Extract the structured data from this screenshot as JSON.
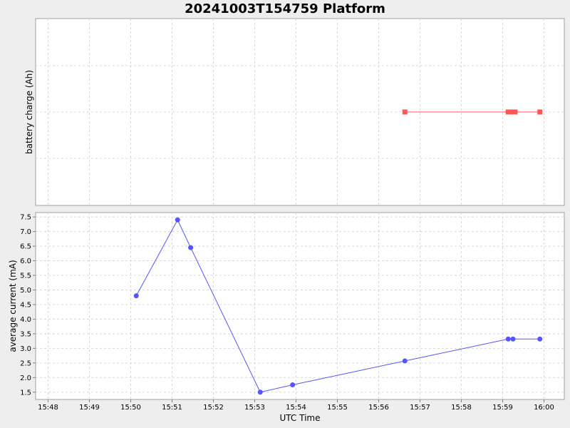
{
  "title": "20241003T154759 Platform",
  "chart_data": [
    {
      "type": "line",
      "ylabel": "battery charge (Ah)",
      "xlabel": "",
      "grid": true,
      "color": "#ff5555",
      "marker": "square",
      "series": [
        {
          "x": [
            "15:56:38",
            "15:59:08",
            "15:59:14",
            "15:59:18",
            "15:59:54"
          ],
          "y": [
            0,
            0,
            0,
            0,
            0
          ]
        }
      ]
    },
    {
      "type": "line",
      "ylabel": "average current (mA)",
      "xlabel": "UTC Time",
      "grid": true,
      "color": "#5555ff",
      "marker": "circle",
      "ylim": [
        1.25,
        7.65
      ],
      "yticks": [
        "1.5",
        "2.0",
        "2.5",
        "3.0",
        "3.5",
        "4.0",
        "4.5",
        "5.0",
        "5.5",
        "6.0",
        "6.5",
        "7.0",
        "7.5"
      ],
      "series": [
        {
          "x": [
            "15:50:08",
            "15:51:08",
            "15:51:27",
            "15:53:08",
            "15:53:55",
            "15:56:38",
            "15:59:08",
            "15:59:15",
            "15:59:54"
          ],
          "y": [
            4.8,
            7.4,
            6.45,
            1.5,
            1.75,
            2.57,
            3.32,
            3.32,
            3.32
          ]
        }
      ]
    }
  ],
  "x_axis": {
    "ticks": [
      "15:48",
      "15:49",
      "15:50",
      "15:51",
      "15:52",
      "15:53",
      "15:54",
      "15:55",
      "15:56",
      "15:57",
      "15:58",
      "15:59",
      "16:00"
    ]
  }
}
